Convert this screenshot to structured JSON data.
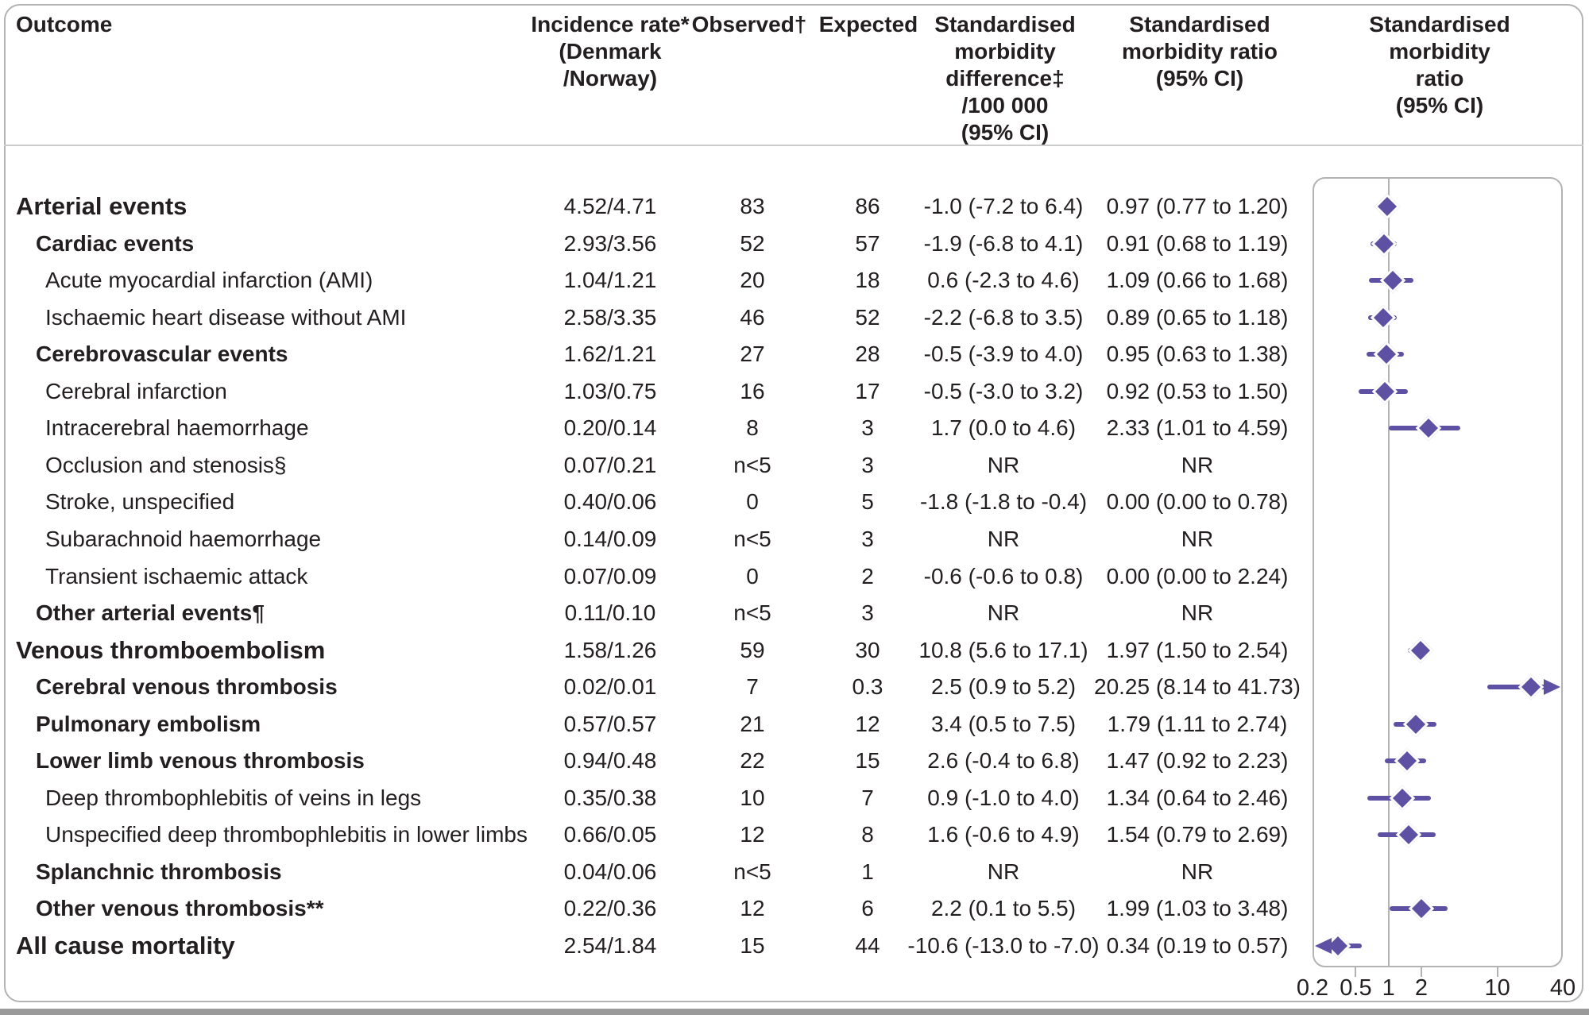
{
  "figure": {
    "columns": {
      "outcome": "Outcome",
      "incidence": "Incidence rate*\n(Denmark\n/Norway)",
      "observed": "Observed†",
      "expected": "Expected",
      "smd": "Standardised\nmorbidity\ndifference‡\n/100 000\n(95% CI)",
      "smr": "Standardised\nmorbidity ratio\n(95% CI)",
      "plot": "Standardised\nmorbidity ratio\n(95% CI)"
    },
    "rows": [
      {
        "label": "Arterial events",
        "indent": 0,
        "bold": true,
        "incidence": "4.52/4.71",
        "observed": "83",
        "expected": "86",
        "smd": "-1.0 (-7.2 to 6.4)",
        "smr": "0.97 (0.77 to 1.20)",
        "est": 0.97,
        "lo": 0.77,
        "hi": 1.2
      },
      {
        "label": "Cardiac events",
        "indent": 1,
        "bold": true,
        "incidence": "2.93/3.56",
        "observed": "52",
        "expected": "57",
        "smd": "-1.9 (-6.8 to 4.1)",
        "smr": "0.91 (0.68 to 1.19)",
        "est": 0.91,
        "lo": 0.68,
        "hi": 1.19
      },
      {
        "label": "Acute myocardial infarction (AMI)",
        "indent": 2,
        "bold": false,
        "incidence": "1.04/1.21",
        "observed": "20",
        "expected": "18",
        "smd": "0.6 (-2.3 to 4.6)",
        "smr": "1.09 (0.66 to 1.68)",
        "est": 1.09,
        "lo": 0.66,
        "hi": 1.68
      },
      {
        "label": "Ischaemic heart disease without AMI",
        "indent": 2,
        "bold": false,
        "incidence": "2.58/3.35",
        "observed": "46",
        "expected": "52",
        "smd": "-2.2 (-6.8 to 3.5)",
        "smr": "0.89 (0.65 to 1.18)",
        "est": 0.89,
        "lo": 0.65,
        "hi": 1.18
      },
      {
        "label": "Cerebrovascular events",
        "indent": 1,
        "bold": true,
        "incidence": "1.62/1.21",
        "observed": "27",
        "expected": "28",
        "smd": "-0.5 (-3.9 to 4.0)",
        "smr": "0.95 (0.63 to 1.38)",
        "est": 0.95,
        "lo": 0.63,
        "hi": 1.38
      },
      {
        "label": "Cerebral infarction",
        "indent": 2,
        "bold": false,
        "incidence": "1.03/0.75",
        "observed": "16",
        "expected": "17",
        "smd": "-0.5 (-3.0 to 3.2)",
        "smr": "0.92 (0.53 to 1.50)",
        "est": 0.92,
        "lo": 0.53,
        "hi": 1.5
      },
      {
        "label": "Intracerebral haemorrhage",
        "indent": 2,
        "bold": false,
        "incidence": "0.20/0.14",
        "observed": "8",
        "expected": "3",
        "smd": "1.7 (0.0 to 4.6)",
        "smr": "2.33 (1.01 to 4.59)",
        "est": 2.33,
        "lo": 1.01,
        "hi": 4.59
      },
      {
        "label": "Occlusion and stenosis§",
        "indent": 2,
        "bold": false,
        "incidence": "0.07/0.21",
        "observed": "n<5",
        "expected": "3",
        "smd": "NR",
        "smr": "NR",
        "est": null,
        "lo": null,
        "hi": null
      },
      {
        "label": "Stroke, unspecified",
        "indent": 2,
        "bold": false,
        "incidence": "0.40/0.06",
        "observed": "0",
        "expected": "5",
        "smd": "-1.8 (-1.8 to -0.4)",
        "smr": "0.00 (0.00 to 0.78)",
        "est": null,
        "lo": null,
        "hi": null
      },
      {
        "label": "Subarachnoid haemorrhage",
        "indent": 2,
        "bold": false,
        "incidence": "0.14/0.09",
        "observed": "n<5",
        "expected": "3",
        "smd": "NR",
        "smr": "NR",
        "est": null,
        "lo": null,
        "hi": null
      },
      {
        "label": "Transient ischaemic attack",
        "indent": 2,
        "bold": false,
        "incidence": "0.07/0.09",
        "observed": "0",
        "expected": "2",
        "smd": "-0.6 (-0.6 to 0.8)",
        "smr": "0.00 (0.00 to 2.24)",
        "est": null,
        "lo": null,
        "hi": null
      },
      {
        "label": "Other arterial events¶",
        "indent": 1,
        "bold": true,
        "incidence": "0.11/0.10",
        "observed": "n<5",
        "expected": "3",
        "smd": "NR",
        "smr": "NR",
        "est": null,
        "lo": null,
        "hi": null
      },
      {
        "label": "Venous thromboembolism",
        "indent": 0,
        "bold": true,
        "incidence": "1.58/1.26",
        "observed": "59",
        "expected": "30",
        "smd": "10.8 (5.6 to 17.1)",
        "smr": "1.97 (1.50 to 2.54)",
        "est": 1.97,
        "lo": 1.5,
        "hi": 2.54
      },
      {
        "label": "Cerebral venous thrombosis",
        "indent": 1,
        "bold": true,
        "incidence": "0.02/0.01",
        "observed": "7",
        "expected": "0.3",
        "smd": "2.5 (0.9 to 5.2)",
        "smr": "20.25 (8.14 to 41.73)",
        "est": 20.25,
        "lo": 8.14,
        "hi": 41.73
      },
      {
        "label": "Pulmonary embolism",
        "indent": 1,
        "bold": true,
        "incidence": "0.57/0.57",
        "observed": "21",
        "expected": "12",
        "smd": "3.4 (0.5 to 7.5)",
        "smr": "1.79 (1.11 to 2.74)",
        "est": 1.79,
        "lo": 1.11,
        "hi": 2.74
      },
      {
        "label": "Lower limb venous thrombosis",
        "indent": 1,
        "bold": true,
        "incidence": "0.94/0.48",
        "observed": "22",
        "expected": "15",
        "smd": "2.6 (-0.4 to 6.8)",
        "smr": "1.47 (0.92 to 2.23)",
        "est": 1.47,
        "lo": 0.92,
        "hi": 2.23
      },
      {
        "label": "Deep thrombophlebitis of veins in legs",
        "indent": 2,
        "bold": false,
        "incidence": "0.35/0.38",
        "observed": "10",
        "expected": "7",
        "smd": "0.9 (-1.0 to 4.0)",
        "smr": "1.34 (0.64 to 2.46)",
        "est": 1.34,
        "lo": 0.64,
        "hi": 2.46
      },
      {
        "label": "Unspecified deep thrombophlebitis in lower limbs",
        "indent": 2,
        "bold": false,
        "incidence": "0.66/0.05",
        "observed": "12",
        "expected": "8",
        "smd": "1.6 (-0.6 to 4.9)",
        "smr": "1.54 (0.79 to 2.69)",
        "est": 1.54,
        "lo": 0.79,
        "hi": 2.69
      },
      {
        "label": "Splanchnic thrombosis",
        "indent": 1,
        "bold": true,
        "incidence": "0.04/0.06",
        "observed": "n<5",
        "expected": "1",
        "smd": "NR",
        "smr": "NR",
        "est": null,
        "lo": null,
        "hi": null
      },
      {
        "label": "Other venous thrombosis**",
        "indent": 1,
        "bold": true,
        "incidence": "0.22/0.36",
        "observed": "12",
        "expected": "6",
        "smd": "2.2 (0.1 to 5.5)",
        "smr": "1.99 (1.03 to 3.48)",
        "est": 1.99,
        "lo": 1.03,
        "hi": 3.48
      },
      {
        "label": "All cause mortality",
        "indent": 0,
        "bold": true,
        "incidence": "2.54/1.84",
        "observed": "15",
        "expected": "44",
        "smd": "-10.6 (-13.0 to -7.0)",
        "smr": "0.34 (0.19 to 0.57)",
        "est": 0.34,
        "lo": 0.19,
        "hi": 0.57
      }
    ]
  },
  "chart_data": {
    "type": "scatter",
    "title": "Standardised morbidity ratio (95% CI)",
    "x_scale": "log",
    "xlim": [
      0.2,
      40
    ],
    "x_ticks": [
      0.2,
      0.5,
      1,
      2,
      10,
      40
    ],
    "tick_labels": [
      "0.2",
      "0.5",
      "1",
      "2",
      "10",
      "40"
    ],
    "reference_line": 1,
    "legend": "none",
    "grid": false,
    "series": [
      {
        "name": "Standardised morbidity ratio (95% CI)",
        "points": [
          {
            "outcome": "Arterial events",
            "smr": 0.97,
            "ci_low": 0.77,
            "ci_high": 1.2
          },
          {
            "outcome": "Cardiac events",
            "smr": 0.91,
            "ci_low": 0.68,
            "ci_high": 1.19
          },
          {
            "outcome": "Acute myocardial infarction (AMI)",
            "smr": 1.09,
            "ci_low": 0.66,
            "ci_high": 1.68
          },
          {
            "outcome": "Ischaemic heart disease without AMI",
            "smr": 0.89,
            "ci_low": 0.65,
            "ci_high": 1.18
          },
          {
            "outcome": "Cerebrovascular events",
            "smr": 0.95,
            "ci_low": 0.63,
            "ci_high": 1.38
          },
          {
            "outcome": "Cerebral infarction",
            "smr": 0.92,
            "ci_low": 0.53,
            "ci_high": 1.5
          },
          {
            "outcome": "Intracerebral haemorrhage",
            "smr": 2.33,
            "ci_low": 1.01,
            "ci_high": 4.59
          },
          {
            "outcome": "Occlusion and stenosis§",
            "smr": null,
            "ci_low": null,
            "ci_high": null
          },
          {
            "outcome": "Stroke, unspecified",
            "smr": null,
            "ci_low": null,
            "ci_high": null
          },
          {
            "outcome": "Subarachnoid haemorrhage",
            "smr": null,
            "ci_low": null,
            "ci_high": null
          },
          {
            "outcome": "Transient ischaemic attack",
            "smr": null,
            "ci_low": null,
            "ci_high": null
          },
          {
            "outcome": "Other arterial events¶",
            "smr": null,
            "ci_low": null,
            "ci_high": null
          },
          {
            "outcome": "Venous thromboembolism",
            "smr": 1.97,
            "ci_low": 1.5,
            "ci_high": 2.54
          },
          {
            "outcome": "Cerebral venous thrombosis",
            "smr": 20.25,
            "ci_low": 8.14,
            "ci_high": 41.73
          },
          {
            "outcome": "Pulmonary embolism",
            "smr": 1.79,
            "ci_low": 1.11,
            "ci_high": 2.74
          },
          {
            "outcome": "Lower limb venous thrombosis",
            "smr": 1.47,
            "ci_low": 0.92,
            "ci_high": 2.23
          },
          {
            "outcome": "Deep thrombophlebitis of veins in legs",
            "smr": 1.34,
            "ci_low": 0.64,
            "ci_high": 2.46
          },
          {
            "outcome": "Unspecified deep thrombophlebitis in lower limbs",
            "smr": 1.54,
            "ci_low": 0.79,
            "ci_high": 2.69
          },
          {
            "outcome": "Splanchnic thrombosis",
            "smr": null,
            "ci_low": null,
            "ci_high": null
          },
          {
            "outcome": "Other venous thrombosis**",
            "smr": 1.99,
            "ci_low": 1.03,
            "ci_high": 3.48
          },
          {
            "outcome": "All cause mortality",
            "smr": 0.34,
            "ci_low": 0.19,
            "ci_high": 0.57
          }
        ]
      }
    ],
    "colors": {
      "marker": "#5e51a3",
      "axis": "#b3b3b3",
      "text": "#231f20"
    }
  }
}
